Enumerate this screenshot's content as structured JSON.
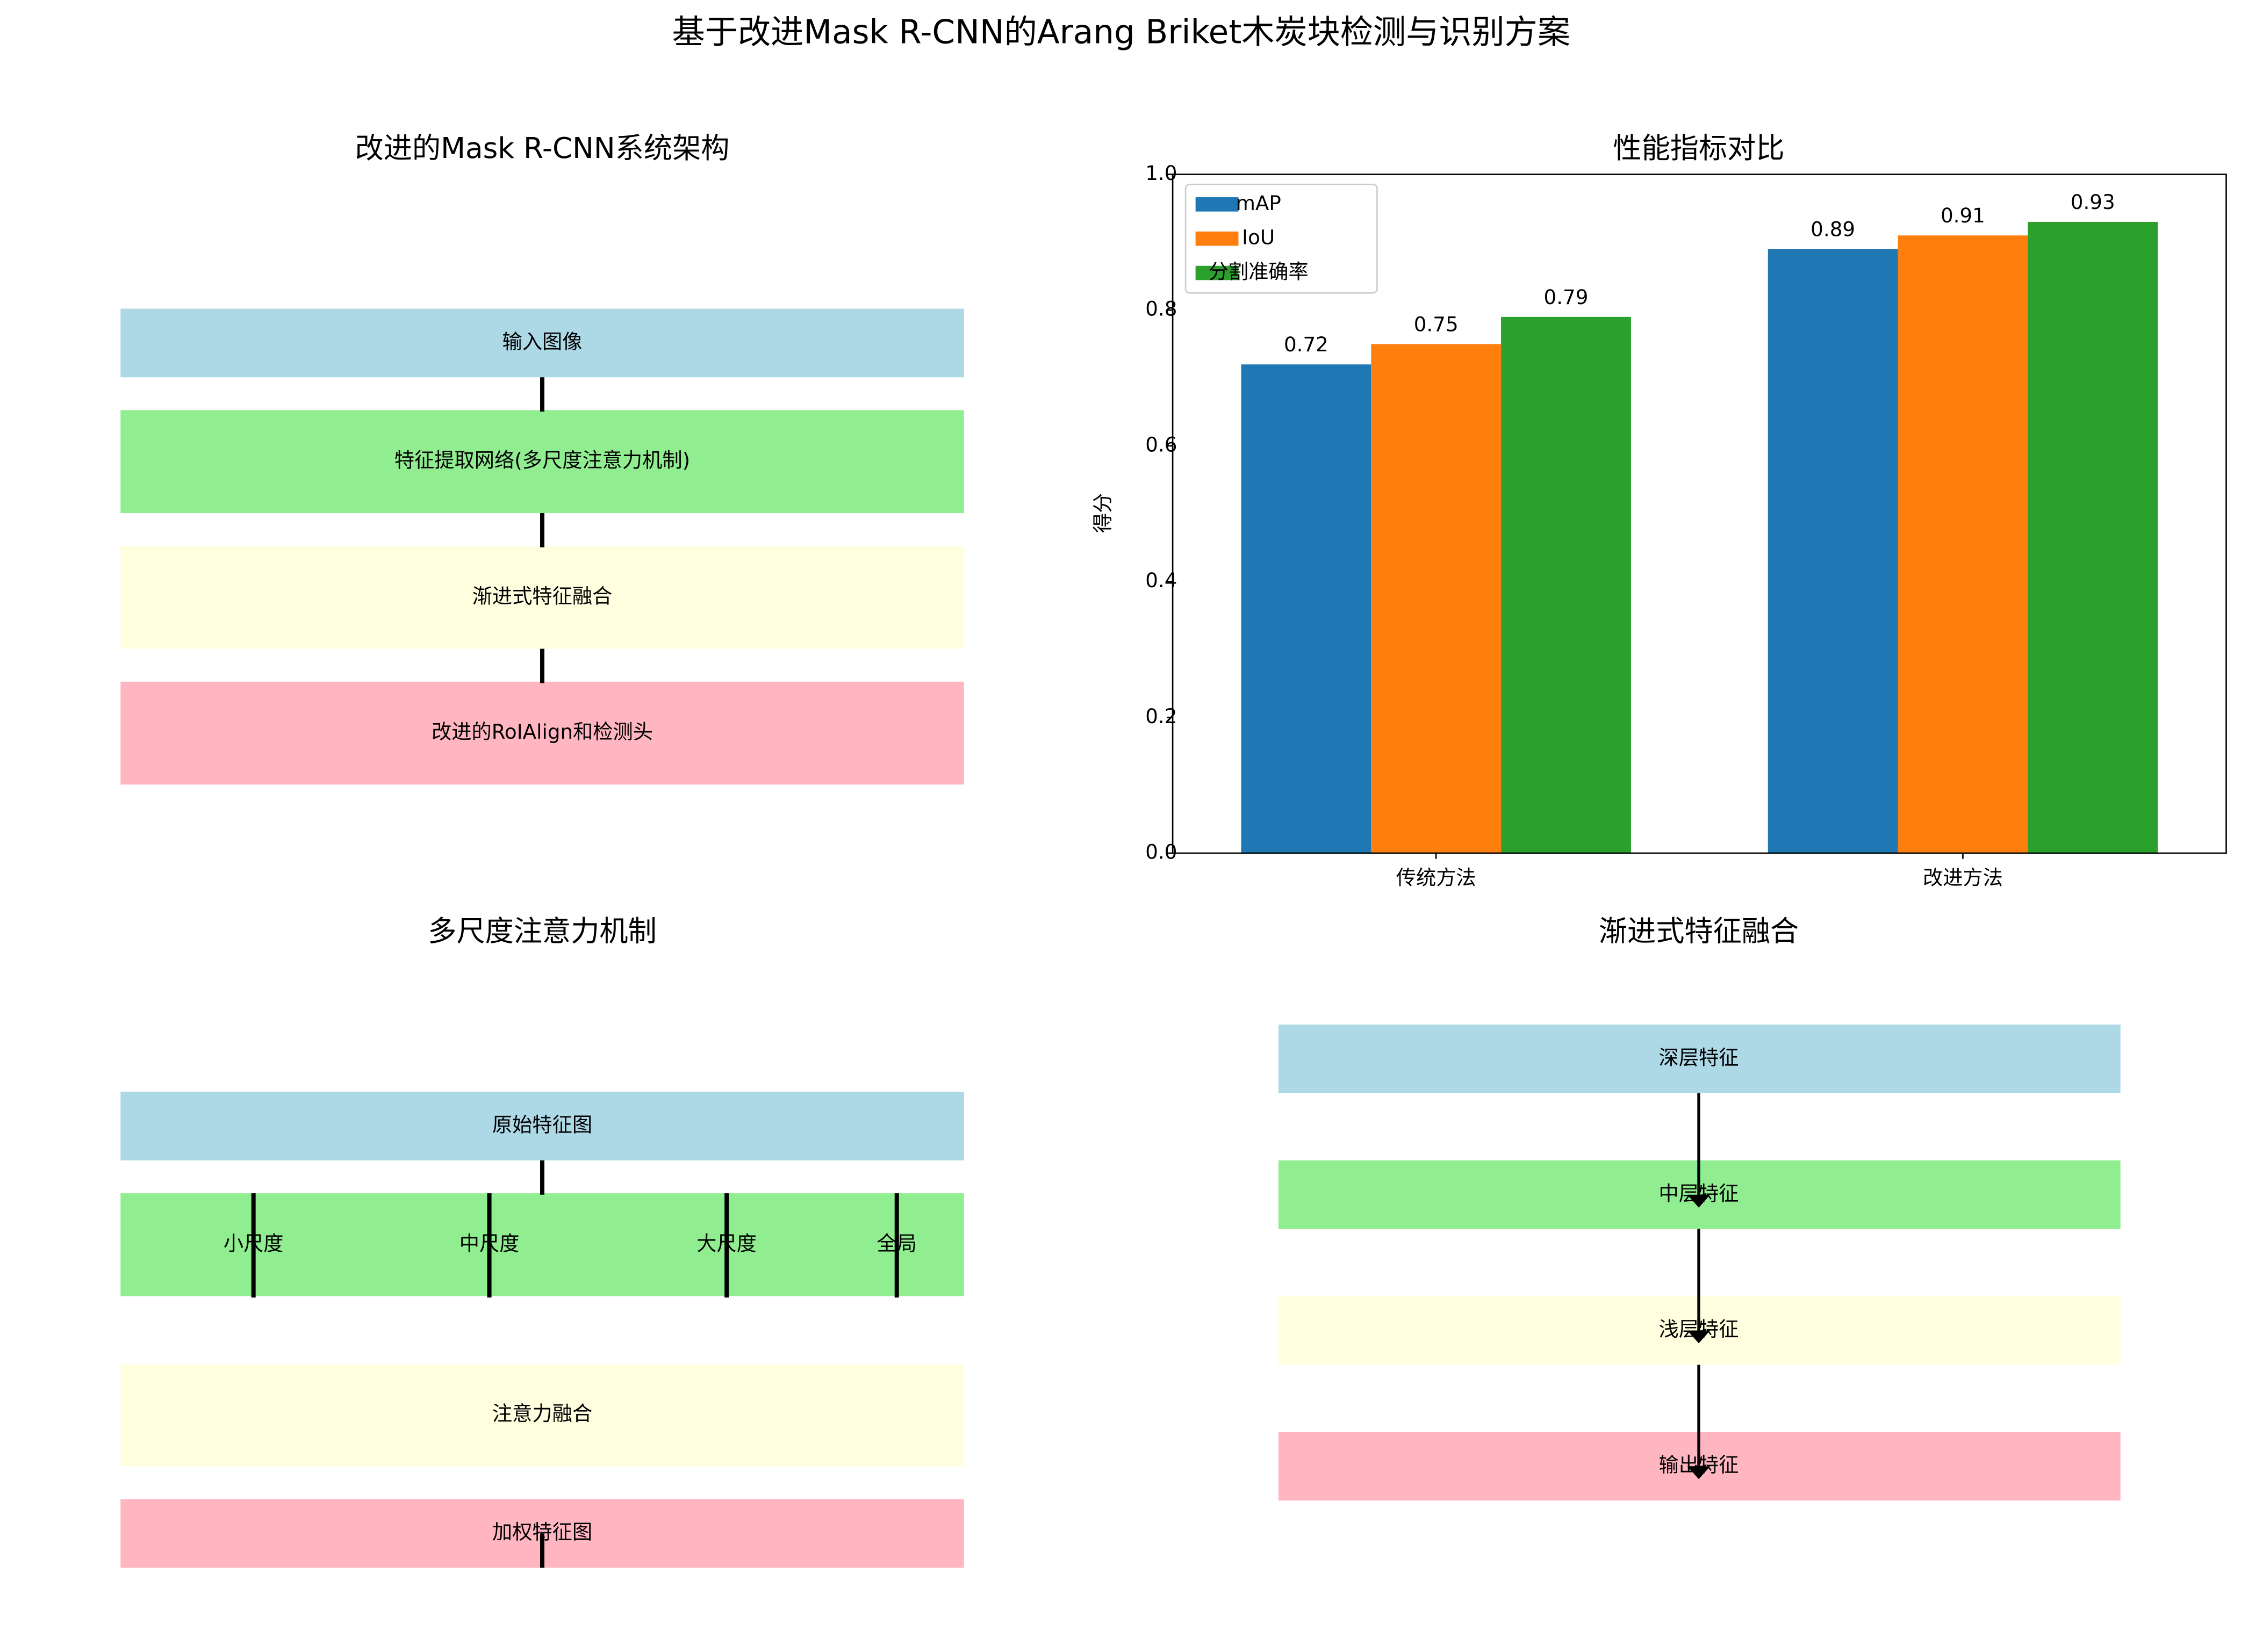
{
  "title": "基于改进Mask R-CNN的Arang Briket木炭块检测与识别方案",
  "diagrams": [
    {
      "title": "改进的Mask R-CNN系统架构",
      "nodes": [
        "输入图像",
        "特征提取网络(多尺度注意力机制)",
        "渐进式特征融合",
        "改进的RoIAlign和检测头"
      ]
    },
    {
      "title": "多尺度注意力机制",
      "nodes": [
        "原始特征图",
        "注意力融合",
        "加权特征图"
      ],
      "scales": [
        "小尺度",
        "中尺度",
        "大尺度",
        "全局"
      ]
    },
    {
      "title": "渐进式特征融合",
      "nodes": [
        "深层特征",
        "中层特征",
        "浅层特征",
        "输出特征"
      ]
    }
  ],
  "chart_data": {
    "type": "bar",
    "title": "性能指标对比",
    "y_label": "得分",
    "categories": [
      "传统方法",
      "改进方法"
    ],
    "series": [
      {
        "name": "mAP",
        "color": "#1f77b4",
        "values": [
          0.72,
          0.89
        ]
      },
      {
        "name": "IoU",
        "color": "#ff7f0e",
        "values": [
          0.75,
          0.91
        ]
      },
      {
        "name": "分割准确率",
        "color": "#2ca02c",
        "values": [
          0.79,
          0.93
        ]
      }
    ],
    "ylim": [
      0,
      1
    ],
    "yticks": [
      {
        "value": 0,
        "label": "0.0"
      },
      0.2,
      0.4,
      0.6,
      0.8,
      {
        "value": 1,
        "label": "1.0"
      }
    ],
    "legend": "upper left"
  }
}
